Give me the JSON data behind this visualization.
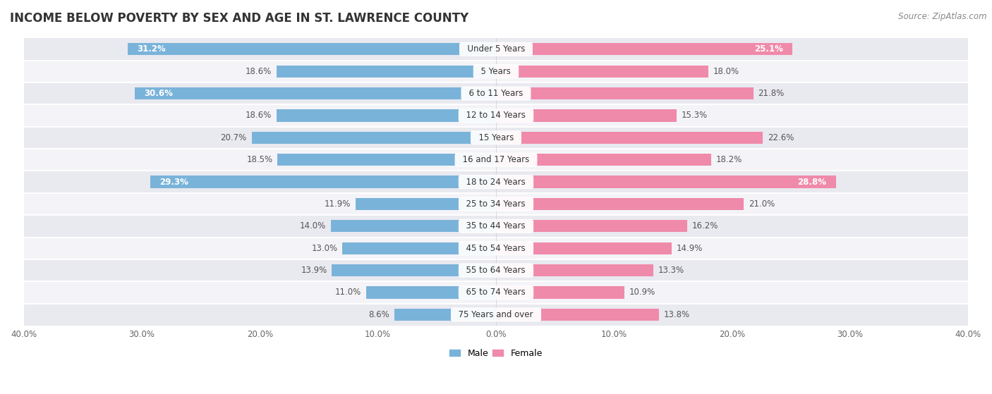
{
  "title": "INCOME BELOW POVERTY BY SEX AND AGE IN ST. LAWRENCE COUNTY",
  "source": "Source: ZipAtlas.com",
  "categories": [
    "Under 5 Years",
    "5 Years",
    "6 to 11 Years",
    "12 to 14 Years",
    "15 Years",
    "16 and 17 Years",
    "18 to 24 Years",
    "25 to 34 Years",
    "35 to 44 Years",
    "45 to 54 Years",
    "55 to 64 Years",
    "65 to 74 Years",
    "75 Years and over"
  ],
  "male": [
    31.2,
    18.6,
    30.6,
    18.6,
    20.7,
    18.5,
    29.3,
    11.9,
    14.0,
    13.0,
    13.9,
    11.0,
    8.6
  ],
  "female": [
    25.1,
    18.0,
    21.8,
    15.3,
    22.6,
    18.2,
    28.8,
    21.0,
    16.2,
    14.9,
    13.3,
    10.9,
    13.8
  ],
  "male_color": "#7ab3d9",
  "female_color": "#f08aaa",
  "row_bg_colors": [
    "#e9e9f0",
    "#f4f4f8"
  ],
  "xlim": 40.0,
  "bar_height": 0.55,
  "title_fontsize": 12,
  "label_fontsize": 8.5,
  "tick_fontsize": 8.5,
  "source_fontsize": 8.5,
  "legend_fontsize": 9,
  "white_threshold": 24.0
}
